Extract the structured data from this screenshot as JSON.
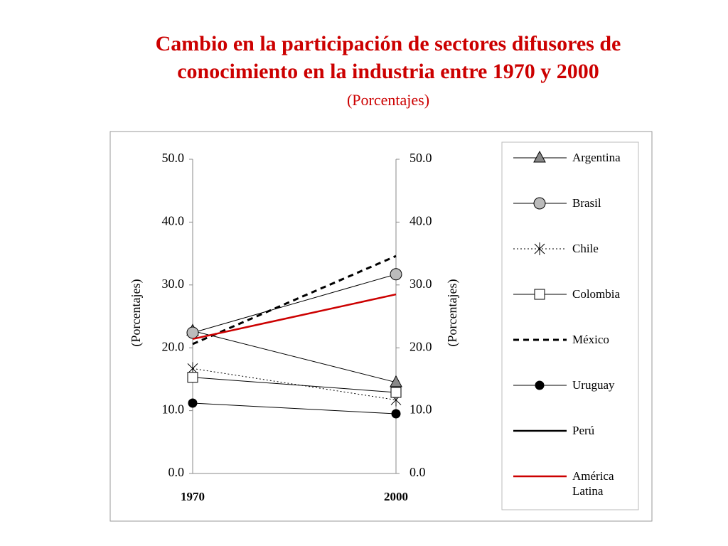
{
  "chart_data": {
    "type": "line",
    "title": [
      "Cambio en la participación de sectores difusores de",
      "conocimiento en la industria entre 1970 y 2000"
    ],
    "subtitle": "(Porcentajes)",
    "title_color": "#cc0000",
    "y_label": "(Porcentajes)",
    "y2_label": "(Porcentajes)",
    "categories": [
      "1970",
      "2000"
    ],
    "ylim": [
      0,
      50
    ],
    "yticks": [
      {
        "value": 0,
        "label": "0.0"
      },
      {
        "value": 10,
        "label": "10.0"
      },
      {
        "value": 20,
        "label": "20.0"
      },
      {
        "value": 30,
        "label": "30.0"
      },
      {
        "value": 40,
        "label": "40.0"
      },
      {
        "value": 50,
        "label": "50.0"
      }
    ],
    "y2lim": [
      0,
      50
    ],
    "y2ticks": [
      {
        "value": 0,
        "label": "0.0"
      },
      {
        "value": 10,
        "label": "10.0"
      },
      {
        "value": 20,
        "label": "20.0"
      },
      {
        "value": 30,
        "label": "30.0"
      },
      {
        "value": 40,
        "label": "40.0"
      },
      {
        "value": 50,
        "label": "50.0"
      }
    ],
    "legend": "right",
    "series": [
      {
        "name": "Argentina",
        "color": "#000000",
        "marker": "triangle",
        "marker_fill": "#888888",
        "dash": "solid",
        "width": 1,
        "values": [
          22.7,
          14.5
        ]
      },
      {
        "name": "Brasil",
        "color": "#000000",
        "marker": "circle",
        "marker_fill": "#bbbbbb",
        "dash": "solid",
        "width": 1,
        "values": [
          22.4,
          31.7
        ]
      },
      {
        "name": "Chile",
        "color": "#000000",
        "marker": "asterisk",
        "marker_fill": "none",
        "dash": "dotted",
        "width": 1,
        "values": [
          16.7,
          11.7
        ]
      },
      {
        "name": "Colombia",
        "color": "#000000",
        "marker": "square",
        "marker_fill": "#ffffff",
        "dash": "solid",
        "width": 1,
        "values": [
          15.3,
          12.9
        ]
      },
      {
        "name": "México",
        "color": "#000000",
        "marker": "none",
        "marker_fill": "none",
        "dash": "dashed",
        "width": 3,
        "values": [
          20.6,
          34.6
        ]
      },
      {
        "name": "Uruguay",
        "color": "#000000",
        "marker": "dot",
        "marker_fill": "#000000",
        "dash": "solid",
        "width": 1,
        "values": [
          11.2,
          9.5
        ]
      },
      {
        "name": "Perú",
        "color": "#000000",
        "marker": "none",
        "marker_fill": "none",
        "dash": "solid",
        "width": 2.5,
        "values": [
          null,
          null
        ]
      },
      {
        "name": "América Latina",
        "color": "#cc0000",
        "marker": "none",
        "marker_fill": "none",
        "dash": "solid",
        "width": 2.5,
        "values": [
          21.4,
          28.5
        ]
      }
    ]
  }
}
